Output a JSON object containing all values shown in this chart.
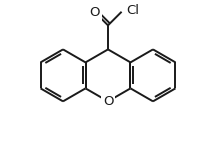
{
  "bg_color": "#ffffff",
  "line_color": "#1a1a1a",
  "line_width": 1.4,
  "text_color": "#1a1a1a",
  "O_label": "O",
  "Cl_label": "Cl",
  "carbonyl_O_label": "O",
  "font_size": 9.5
}
